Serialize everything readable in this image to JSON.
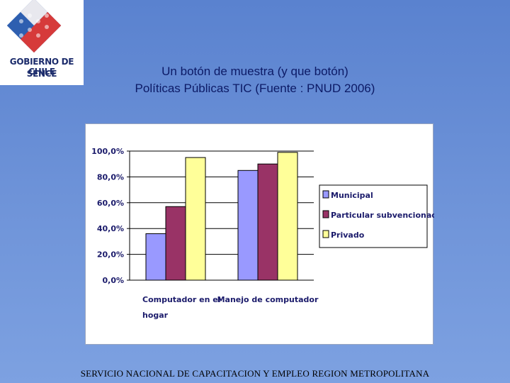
{
  "logo": {
    "name": "gobierno-de-chile-logo",
    "line1": "GOBIERNO DE CHILE",
    "line2": "SENCE",
    "colors": {
      "blue": "#2e5fb0",
      "red": "#d63a3a",
      "white": "#ffffff"
    }
  },
  "title": {
    "line1": "Un  botón de muestra (y que botón)",
    "line2": "Políticas Públicas TIC (Fuente : PNUD 2006)"
  },
  "chart_data": {
    "type": "bar",
    "categories": [
      "Computador en el hogar",
      "Manejo de computador"
    ],
    "category_lines": [
      [
        "Computador en el",
        "hogar"
      ],
      [
        "Manejo de computador"
      ]
    ],
    "series": [
      {
        "name": "Municipal",
        "values": [
          36,
          85
        ],
        "color": "#9999ff"
      },
      {
        "name": "Particular subvencionado",
        "values": [
          57,
          90
        ],
        "color": "#993366"
      },
      {
        "name": "Privado",
        "values": [
          95,
          99
        ],
        "color": "#ffff99"
      }
    ],
    "yticks": [
      "0,0%",
      "20,0%",
      "40,0%",
      "60,0%",
      "80,0%",
      "100,0%"
    ],
    "ylim": [
      0,
      100
    ],
    "grid": true,
    "legend": "right"
  },
  "footer": "SERVICIO NACIONAL DE CAPACITACION Y EMPLEO REGION METROPOLITANA"
}
